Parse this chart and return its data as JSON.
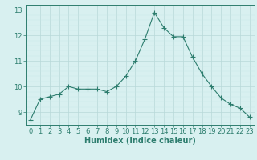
{
  "x": [
    0,
    1,
    2,
    3,
    4,
    5,
    6,
    7,
    8,
    9,
    10,
    11,
    12,
    13,
    14,
    15,
    16,
    17,
    18,
    19,
    20,
    21,
    22,
    23
  ],
  "y": [
    8.7,
    9.5,
    9.6,
    9.7,
    10.0,
    9.9,
    9.9,
    9.9,
    9.8,
    10.0,
    10.4,
    11.0,
    11.85,
    12.9,
    12.3,
    11.95,
    11.95,
    11.15,
    10.5,
    10.0,
    9.55,
    9.3,
    9.15,
    8.8
  ],
  "line_color": "#2d7d6e",
  "marker": "+",
  "marker_size": 4,
  "marker_linewidth": 0.8,
  "bg_color": "#d8f0f0",
  "grid_color": "#b8d8d8",
  "grid_color_minor": "#c8e8e8",
  "axis_color": "#2d7d6e",
  "tick_color": "#2d7d6e",
  "xlabel": "Humidex (Indice chaleur)",
  "ylim": [
    8.5,
    13.2
  ],
  "xlim": [
    -0.5,
    23.5
  ],
  "yticks": [
    9,
    10,
    11,
    12,
    13
  ],
  "xticks": [
    0,
    1,
    2,
    3,
    4,
    5,
    6,
    7,
    8,
    9,
    10,
    11,
    12,
    13,
    14,
    15,
    16,
    17,
    18,
    19,
    20,
    21,
    22,
    23
  ],
  "xlabel_fontsize": 7,
  "tick_fontsize": 6,
  "linewidth": 0.8
}
